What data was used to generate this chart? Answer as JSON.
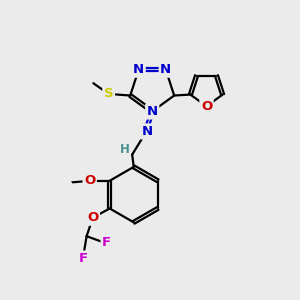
{
  "bg_color": "#ebebeb",
  "bond_color": "#000000",
  "atom_colors": {
    "N": "#0000cc",
    "O": "#cc0000",
    "S": "#cccc00",
    "F": "#cc00cc",
    "H": "#4a9090",
    "C": "#000000"
  },
  "lw": 1.6,
  "fontsize": 9.5
}
